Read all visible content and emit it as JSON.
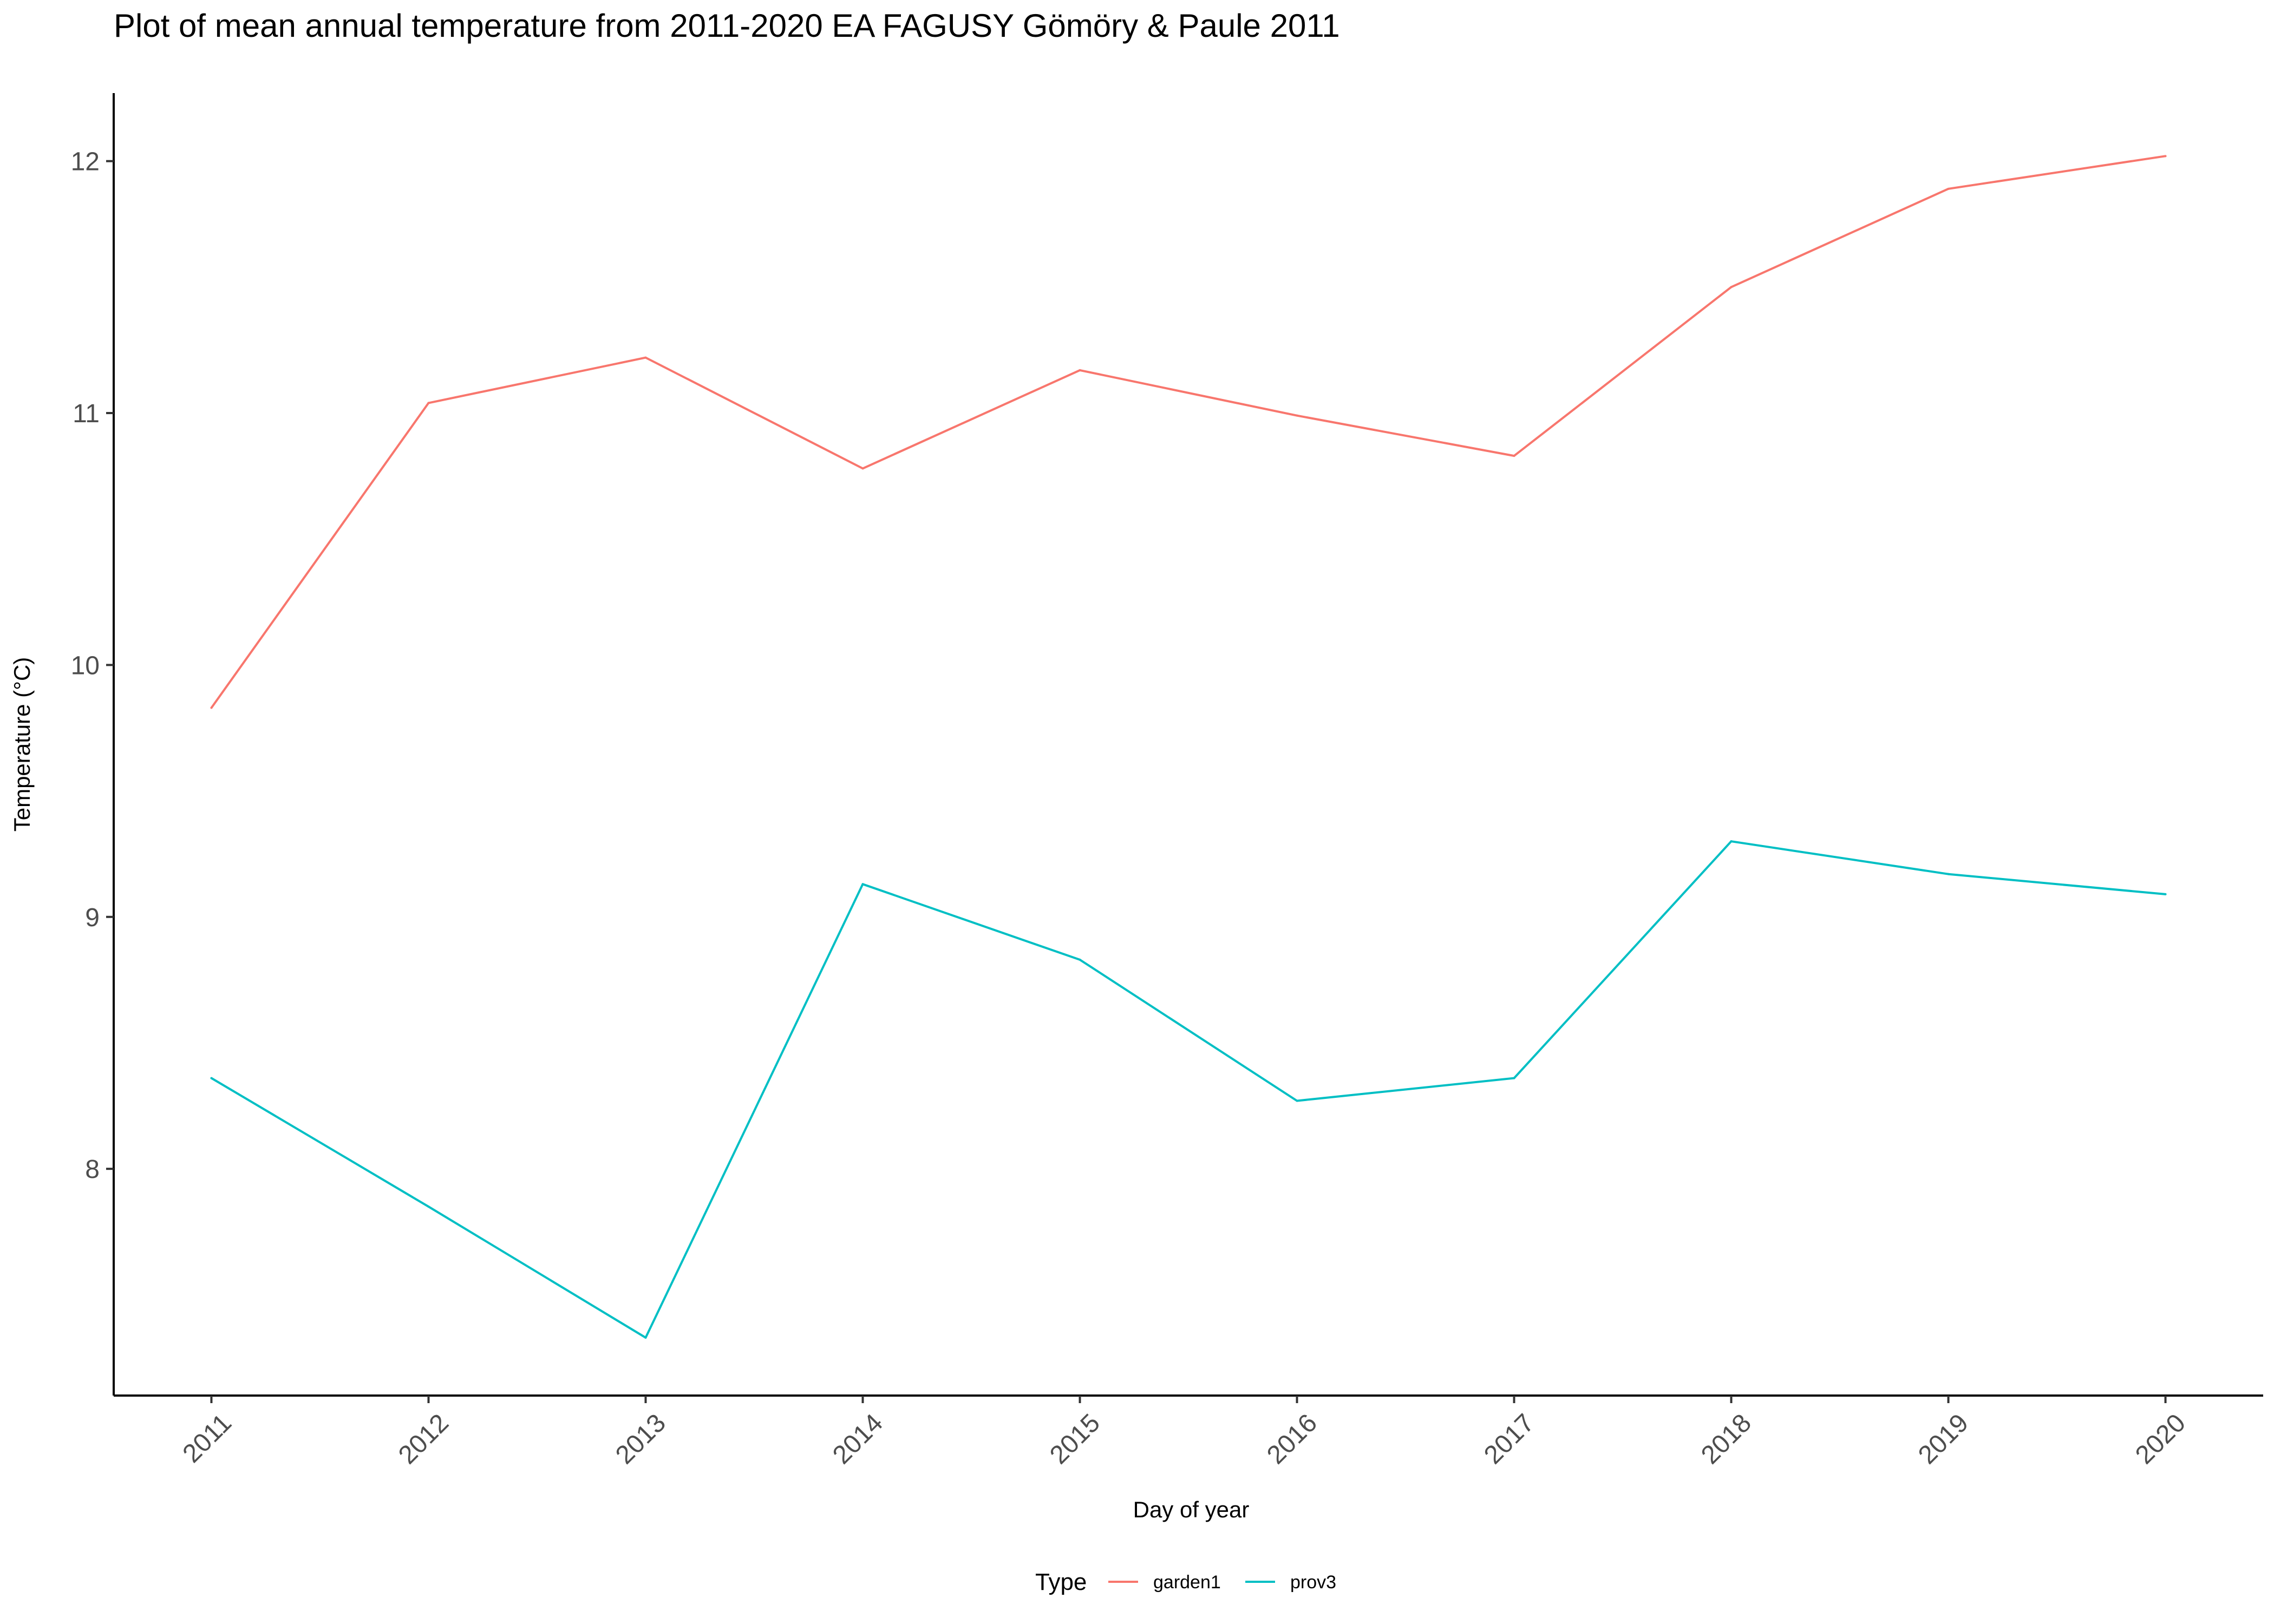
{
  "chart_data": {
    "type": "line",
    "title": "Plot of mean annual temperature from 2011-2020 EA FAGUSY Gömöry & Paule 2011",
    "xlabel": "Day of year",
    "ylabel": "Temperature (°C)",
    "x": [
      2011,
      2012,
      2013,
      2014,
      2015,
      2016,
      2017,
      2018,
      2019,
      2020
    ],
    "x_tick_labels": [
      "2011",
      "2012",
      "2013",
      "2014",
      "2015",
      "2016",
      "2017",
      "2018",
      "2019",
      "2020"
    ],
    "y_ticks": [
      8,
      9,
      10,
      11,
      12
    ],
    "y_tick_labels": [
      "8",
      "9",
      "10",
      "11",
      "12"
    ],
    "xlim": [
      2010.55,
      2020.45
    ],
    "ylim": [
      7.1,
      12.27
    ],
    "grid": false,
    "legend": {
      "title": "Type",
      "position": "bottom"
    },
    "series": [
      {
        "name": "garden1",
        "color": "#F8766D",
        "values": [
          9.83,
          11.04,
          11.22,
          10.78,
          11.17,
          10.99,
          10.83,
          11.5,
          11.89,
          12.02
        ]
      },
      {
        "name": "prov3",
        "color": "#00BFC4",
        "values": [
          8.36,
          7.85,
          7.33,
          9.13,
          8.83,
          8.27,
          8.36,
          9.3,
          9.17,
          9.09
        ]
      }
    ]
  }
}
